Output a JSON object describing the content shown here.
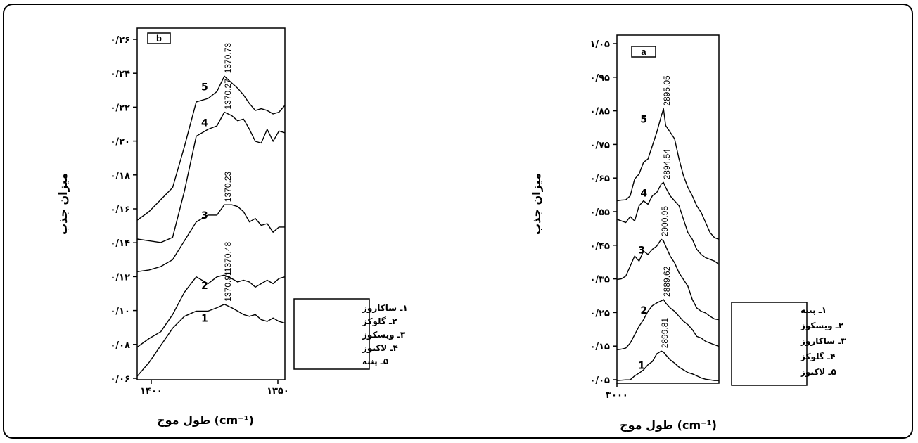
{
  "chart_data": [
    {
      "panel": "b",
      "type": "line",
      "ylabel": "میزان جذب",
      "xlabel": "طول موج (cm⁻¹)",
      "x_tick_labels": [
        "۱۴۰۰",
        "۱۳۵۰"
      ],
      "y_tick_labels": [
        "۰/۰۶",
        "۰/۰۸",
        "۰/۱۰",
        "۰/۱۲",
        "۰/۱۴",
        "۰/۱۶",
        "۰/۱۸",
        "۰/۲۰",
        "۰/۲۲",
        "۰/۲۴",
        "۰/۲۶"
      ],
      "x": [
        1400,
        1396,
        1392,
        1388,
        1384,
        1380,
        1376,
        1373,
        1370.5,
        1368,
        1366,
        1364,
        1362,
        1360,
        1358,
        1356,
        1354,
        1352,
        1350
      ],
      "ylim": [
        0.06,
        0.265
      ],
      "xlim": [
        1400,
        1350
      ],
      "series": [
        {
          "name": "1",
          "peak_label": "1370.91",
          "values": [
            0.062,
            0.07,
            0.08,
            0.09,
            0.097,
            0.1,
            0.1,
            0.102,
            0.104,
            0.102,
            0.1,
            0.098,
            0.097,
            0.098,
            0.095,
            0.094,
            0.096,
            0.094,
            0.093
          ]
        },
        {
          "name": "2",
          "peak_label": "1370.48",
          "values": [
            0.079,
            0.084,
            0.088,
            0.098,
            0.111,
            0.12,
            0.116,
            0.12,
            0.121,
            0.119,
            0.117,
            0.118,
            0.117,
            0.114,
            0.116,
            0.118,
            0.116,
            0.119,
            0.12
          ]
        },
        {
          "name": "3",
          "peak_label": "1370.23",
          "values": [
            0.123,
            0.124,
            0.126,
            0.13,
            0.141,
            0.152,
            0.156,
            0.156,
            0.162,
            0.162,
            0.161,
            0.158,
            0.152,
            0.154,
            0.15,
            0.151,
            0.146,
            0.149,
            0.149
          ]
        },
        {
          "name": "4",
          "peak_label": "1370.27",
          "values": [
            0.142,
            0.141,
            0.14,
            0.143,
            0.17,
            0.202,
            0.206,
            0.208,
            0.216,
            0.214,
            0.211,
            0.212,
            0.206,
            0.199,
            0.198,
            0.206,
            0.199,
            0.205,
            0.204
          ]
        },
        {
          "name": "5",
          "peak_label": "1370.73",
          "values": [
            0.153,
            0.158,
            0.165,
            0.172,
            0.196,
            0.222,
            0.224,
            0.228,
            0.237,
            0.233,
            0.23,
            0.226,
            0.221,
            0.217,
            0.218,
            0.217,
            0.215,
            0.216,
            0.22
          ]
        }
      ],
      "legend": [
        "۱ـ ساکاروز",
        "۲ـ گلوکز",
        "۳ـ ویسکوز",
        "۴ـ لاکتوز",
        "۵ـ پنبه"
      ],
      "legend_placement": "right",
      "grid": false
    },
    {
      "panel": "a",
      "type": "line",
      "ylabel": "میزان جذب",
      "xlabel": "طول موج (cm⁻¹)",
      "x_tick_labels": [
        "۳۰۰۰"
      ],
      "y_tick_labels": [
        "۰/۰۵",
        "۰/۱۵",
        "۰/۲۵",
        "۰/۳۵",
        "۰/۴۵",
        "۰/۵۵",
        "۰/۶۵",
        "۰/۷۵",
        "۰/۸۵",
        "۰/۹۵",
        "۱/۰۵"
      ],
      "x": [
        3000,
        2990,
        2980,
        2970,
        2960,
        2950,
        2940,
        2930,
        2920,
        2910,
        2900,
        2895,
        2890,
        2880,
        2870,
        2860,
        2850,
        2840,
        2830,
        2820,
        2810,
        2800,
        2790,
        2780,
        2770
      ],
      "ylim": [
        0.03,
        1.07
      ],
      "xlim": [
        3000,
        2770
      ],
      "series": [
        {
          "name": "1",
          "peak_label": "2899.81",
          "values": [
            0.038,
            0.039,
            0.04,
            0.04,
            0.052,
            0.06,
            0.07,
            0.085,
            0.095,
            0.118,
            0.126,
            0.123,
            0.115,
            0.1,
            0.09,
            0.078,
            0.07,
            0.062,
            0.058,
            0.052,
            0.046,
            0.042,
            0.04,
            0.038,
            0.038
          ]
        },
        {
          "name": "2",
          "peak_label": "2889.62",
          "values": [
            0.13,
            0.132,
            0.135,
            0.15,
            0.175,
            0.2,
            0.22,
            0.245,
            0.262,
            0.27,
            0.276,
            0.28,
            0.27,
            0.255,
            0.245,
            0.23,
            0.215,
            0.205,
            0.19,
            0.17,
            0.165,
            0.155,
            0.15,
            0.145,
            0.14
          ]
        },
        {
          "name": "3",
          "peak_label": "2900.95",
          "values": [
            0.34,
            0.342,
            0.35,
            0.38,
            0.41,
            0.395,
            0.425,
            0.415,
            0.43,
            0.44,
            0.46,
            0.455,
            0.44,
            0.41,
            0.39,
            0.36,
            0.34,
            0.32,
            0.28,
            0.255,
            0.245,
            0.24,
            0.23,
            0.222,
            0.22
          ]
        },
        {
          "name": "4",
          "peak_label": "2894.54",
          "values": [
            0.52,
            0.515,
            0.51,
            0.528,
            0.515,
            0.56,
            0.575,
            0.565,
            0.59,
            0.6,
            0.625,
            0.63,
            0.615,
            0.59,
            0.575,
            0.56,
            0.52,
            0.48,
            0.46,
            0.43,
            0.415,
            0.405,
            0.4,
            0.395,
            0.385
          ]
        },
        {
          "name": "5",
          "peak_label": "2895.05",
          "values": [
            0.575,
            0.577,
            0.578,
            0.59,
            0.64,
            0.655,
            0.69,
            0.7,
            0.74,
            0.78,
            0.828,
            0.85,
            0.8,
            0.78,
            0.76,
            0.7,
            0.65,
            0.615,
            0.59,
            0.56,
            0.54,
            0.51,
            0.48,
            0.465,
            0.46
          ]
        }
      ],
      "legend": [
        "۱ـ پنبه",
        "۲ـ ویسکوز",
        "۳ـ ساکاروز",
        "۴ـ گلوکز",
        "۵ـ لاکتوز"
      ],
      "legend_placement": "right",
      "grid": false
    }
  ]
}
